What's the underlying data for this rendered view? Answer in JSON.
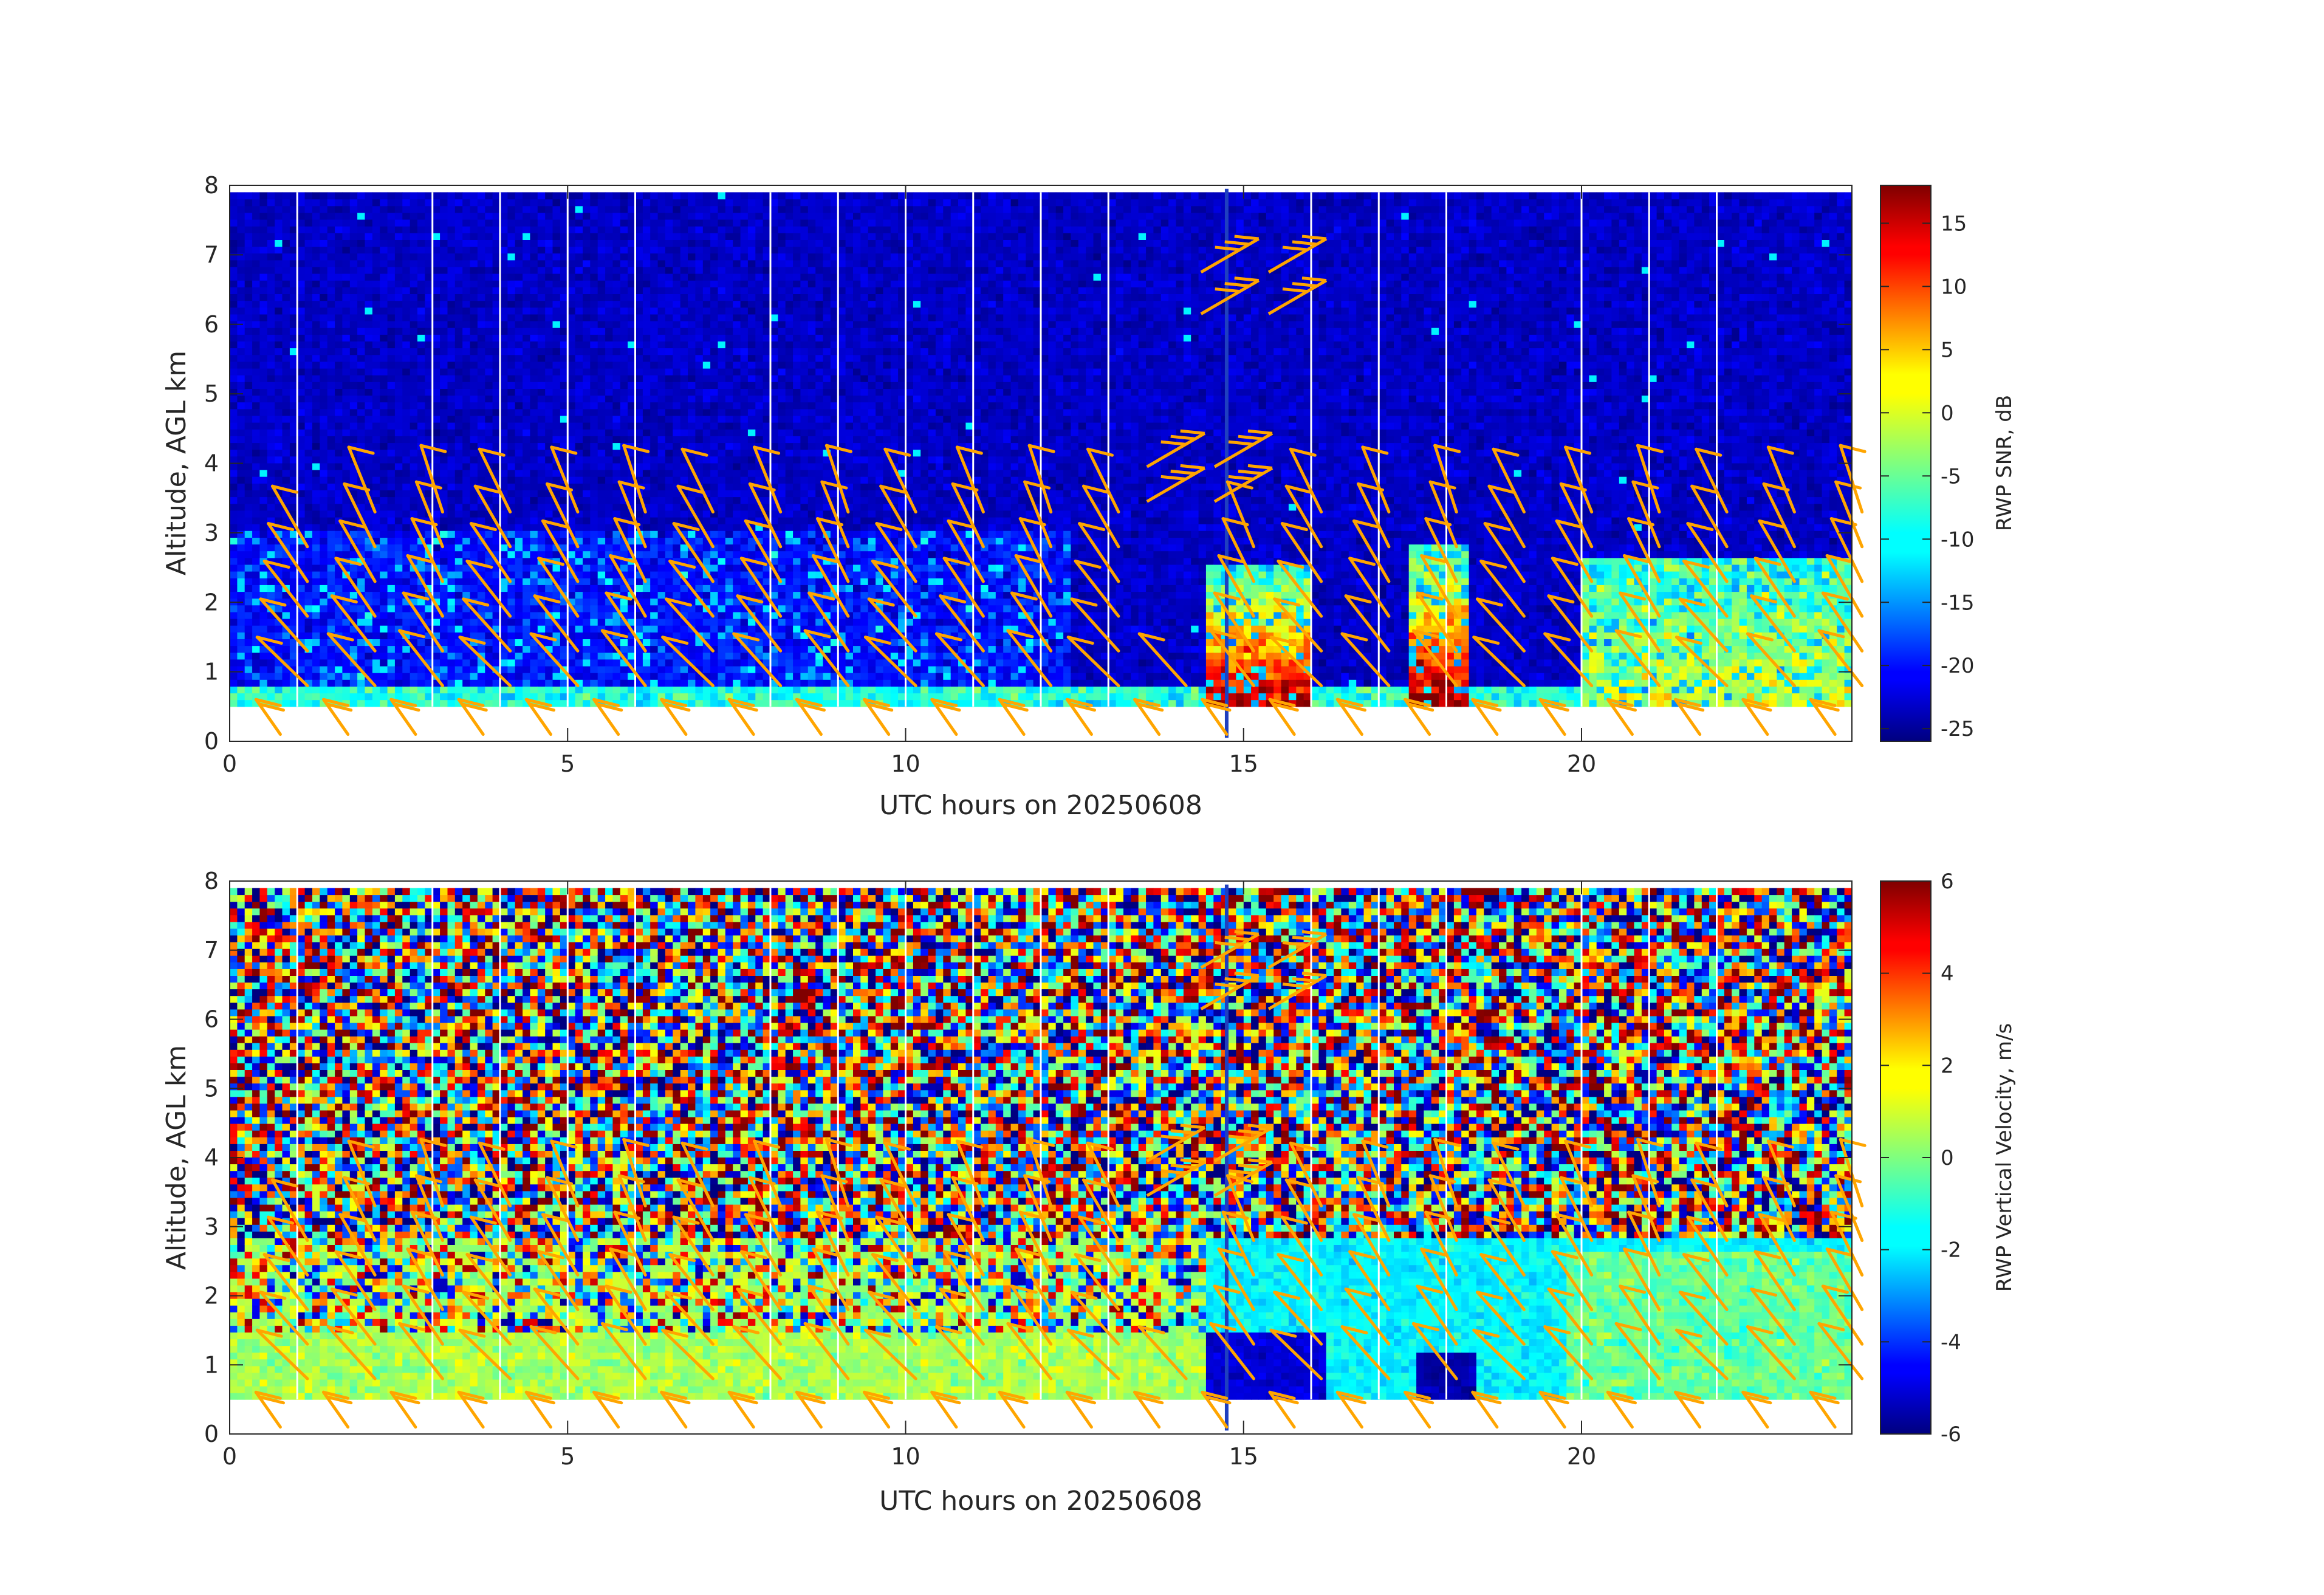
{
  "chart_data": [
    {
      "type": "heatmap",
      "panel": "top",
      "xlabel": "UTC hours on 20250608",
      "ylabel": "Altitude, AGL km",
      "xlim": [
        0,
        24
      ],
      "ylim": [
        0,
        8
      ],
      "x_ticks": [
        0,
        5,
        10,
        15,
        20
      ],
      "y_ticks": [
        0,
        1,
        2,
        3,
        4,
        5,
        6,
        7,
        8
      ],
      "data_altitude_range_km": [
        0.5,
        7.9
      ],
      "colorbar": {
        "label": "RWP SNR, dB",
        "range": [
          -26,
          18
        ],
        "ticks": [
          -25,
          -20,
          -15,
          -10,
          -5,
          0,
          5,
          10,
          15
        ],
        "colormap": "jet"
      },
      "features": {
        "background_snr_dB": -23,
        "boundary_layer_band": {
          "from_km": 0.5,
          "to_km": 0.8,
          "snr_dB": -8
        },
        "strong_echo_periods": [
          {
            "x_from": 14.5,
            "x_to": 16.0,
            "alt_from_km": 0.5,
            "alt_to_km": 2.5,
            "peak_snr_dB": 17
          },
          {
            "x_from": 17.5,
            "x_to": 18.3,
            "alt_from_km": 0.5,
            "alt_to_km": 2.8,
            "peak_snr_dB": 17
          },
          {
            "x_from": 20.0,
            "x_to": 24.0,
            "alt_from_km": 0.5,
            "alt_to_km": 2.6,
            "peak_snr_dB": 0
          }
        ]
      },
      "gap_lines_hours": [
        1,
        3,
        4,
        5,
        6,
        8,
        9,
        10,
        11,
        12,
        13,
        16,
        17,
        18,
        20,
        21,
        22
      ]
    },
    {
      "type": "heatmap",
      "panel": "bottom",
      "xlabel": "UTC hours on 20250608",
      "ylabel": "Altitude, AGL km",
      "xlim": [
        0,
        24
      ],
      "ylim": [
        0,
        8
      ],
      "x_ticks": [
        0,
        5,
        10,
        15,
        20
      ],
      "y_ticks": [
        0,
        1,
        2,
        3,
        4,
        5,
        6,
        7,
        8
      ],
      "data_altitude_range_km": [
        0.5,
        7.9
      ],
      "colorbar": {
        "label": "RWP Vertical Velocity, m/s",
        "range": [
          -6,
          6
        ],
        "ticks": [
          -6,
          -4,
          -2,
          0,
          2,
          4,
          6
        ],
        "colormap": "jet"
      },
      "features": {
        "noise_above_km": 2.8,
        "boundary_layer_band": {
          "from_km": 0.5,
          "to_km": 1.5,
          "velocity_ms": 0.5
        },
        "downdraft_periods": [
          {
            "x_from": 14.5,
            "x_to": 16.2,
            "alt_from_km": 0.5,
            "alt_to_km": 1.5,
            "velocity_ms": -5
          },
          {
            "x_from": 17.6,
            "x_to": 18.4,
            "alt_from_km": 0.5,
            "alt_to_km": 1.2,
            "velocity_ms": -5.5
          }
        ]
      },
      "gap_lines_hours": [
        1,
        3,
        4,
        5,
        6,
        8,
        9,
        10,
        11,
        12,
        13,
        16,
        17,
        18,
        20,
        21,
        22
      ]
    }
  ],
  "wind_barbs": {
    "color": "#FFA500",
    "times_hours": [
      0.75,
      1.75,
      2.75,
      3.75,
      4.75,
      5.75,
      6.75,
      7.75,
      8.75,
      9.75,
      10.75,
      11.75,
      12.75,
      13.75,
      14.75,
      15.75,
      16.75,
      17.75,
      18.75,
      19.75,
      20.75,
      21.75,
      22.75,
      23.75
    ],
    "levels_km": [
      0.1,
      0.8,
      1.3,
      1.8,
      2.3,
      2.8,
      3.3
    ],
    "upper_barbs": [
      {
        "time": 14.2,
        "alt_km": 4.3,
        "speed_kt": 35
      },
      {
        "time": 14.2,
        "alt_km": 3.8,
        "speed_kt": 35
      },
      {
        "time": 15.2,
        "alt_km": 4.3,
        "speed_kt": 35
      },
      {
        "time": 15.2,
        "alt_km": 3.8,
        "speed_kt": 35
      },
      {
        "time": 15.0,
        "alt_km": 7.1,
        "speed_kt": 35
      },
      {
        "time": 15.0,
        "alt_km": 6.5,
        "speed_kt": 35
      },
      {
        "time": 16.0,
        "alt_km": 7.1,
        "speed_kt": 35
      },
      {
        "time": 16.0,
        "alt_km": 6.5,
        "speed_kt": 35
      }
    ]
  }
}
